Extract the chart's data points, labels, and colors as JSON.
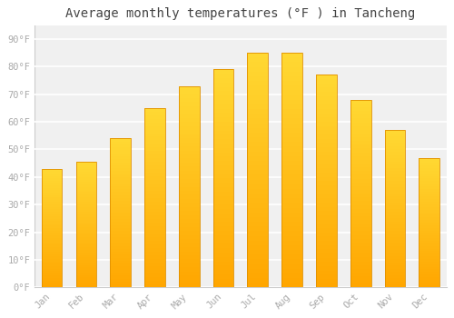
{
  "months": [
    "Jan",
    "Feb",
    "Mar",
    "Apr",
    "May",
    "Jun",
    "Jul",
    "Aug",
    "Sep",
    "Oct",
    "Nov",
    "Dec"
  ],
  "values": [
    43,
    45.5,
    54,
    65,
    73,
    79,
    85,
    85,
    77,
    68,
    57,
    47
  ],
  "bar_color_bottom": "#FFA500",
  "bar_color_top": "#FFD966",
  "bar_color_mid": "#FFB300",
  "bar_edge_color": "#E09000",
  "background_color": "#FFFFFF",
  "plot_bg_color": "#F0F0F0",
  "grid_color": "#FFFFFF",
  "title": "Average monthly temperatures (°F ) in Tancheng",
  "title_fontsize": 10,
  "ylabel_ticks": [
    "0°F",
    "10°F",
    "20°F",
    "30°F",
    "40°F",
    "50°F",
    "60°F",
    "70°F",
    "80°F",
    "90°F"
  ],
  "ytick_values": [
    0,
    10,
    20,
    30,
    40,
    50,
    60,
    70,
    80,
    90
  ],
  "ylim": [
    0,
    95
  ],
  "tick_label_color": "#AAAAAA",
  "tick_fontsize": 7.5,
  "title_color": "#444444"
}
